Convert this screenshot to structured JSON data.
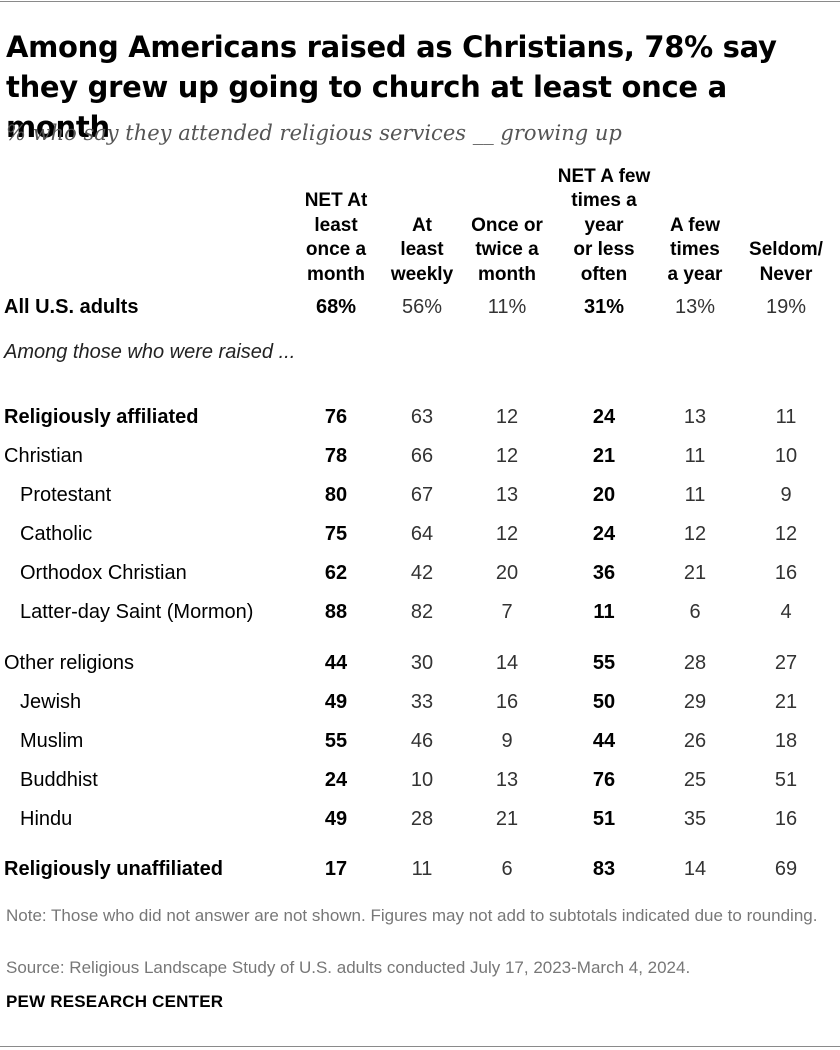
{
  "title": "Among Americans raised as Christians, 78% say they grew up going to church at least once a month",
  "subtitle": "% who say they attended religious services __ growing up",
  "section_note": "Among those who were raised ...",
  "note": "Note: Those who did not answer are not shown. Figures may not add to subtotals indicated due to rounding.",
  "source": "Source: Religious Landscape Study of U.S. adults conducted July 17, 2023-March 4, 2024.",
  "org": "PEW RESEARCH CENTER",
  "chart_data": {
    "type": "table",
    "title": "Among Americans raised as Christians, 78% say they grew up going to church at least once a month",
    "subtitle": "% who say they attended religious services __ growing up",
    "columns": [
      "NET At\nleast\nonce a\nmonth",
      "At\nleast\nweekly",
      "Once or\ntwice a\nmonth",
      "NET A few\ntimes a\nyear\nor less\noften",
      "A few\ntimes\na year",
      "Seldom/\nNever"
    ],
    "bold_columns": [
      0,
      3
    ],
    "rows": [
      {
        "label": "All U.S. adults",
        "bold": true,
        "indent": false,
        "values": [
          "68%",
          "56%",
          "11%",
          "31%",
          "13%",
          "19%"
        ]
      },
      {
        "label": "Religiously affiliated",
        "bold": true,
        "indent": false,
        "values": [
          "76",
          "63",
          "12",
          "24",
          "13",
          "11"
        ]
      },
      {
        "label": "Christian",
        "bold": false,
        "indent": false,
        "values": [
          "78",
          "66",
          "12",
          "21",
          "11",
          "10"
        ]
      },
      {
        "label": "Protestant",
        "bold": false,
        "indent": true,
        "values": [
          "80",
          "67",
          "13",
          "20",
          "11",
          "9"
        ]
      },
      {
        "label": "Catholic",
        "bold": false,
        "indent": true,
        "values": [
          "75",
          "64",
          "12",
          "24",
          "12",
          "12"
        ]
      },
      {
        "label": "Orthodox Christian",
        "bold": false,
        "indent": true,
        "values": [
          "62",
          "42",
          "20",
          "36",
          "21",
          "16"
        ]
      },
      {
        "label": "Latter-day Saint (Mormon)",
        "bold": false,
        "indent": true,
        "values": [
          "88",
          "82",
          "7",
          "11",
          "6",
          "4"
        ]
      },
      {
        "label": "Other religions",
        "bold": false,
        "indent": false,
        "values": [
          "44",
          "30",
          "14",
          "55",
          "28",
          "27"
        ]
      },
      {
        "label": "Jewish",
        "bold": false,
        "indent": true,
        "values": [
          "49",
          "33",
          "16",
          "50",
          "29",
          "21"
        ]
      },
      {
        "label": "Muslim",
        "bold": false,
        "indent": true,
        "values": [
          "55",
          "46",
          "9",
          "44",
          "26",
          "18"
        ]
      },
      {
        "label": "Buddhist",
        "bold": false,
        "indent": true,
        "values": [
          "24",
          "10",
          "13",
          "76",
          "25",
          "51"
        ]
      },
      {
        "label": "Hindu",
        "bold": false,
        "indent": true,
        "values": [
          "49",
          "28",
          "21",
          "51",
          "35",
          "16"
        ]
      },
      {
        "label": "Religiously unaffiliated",
        "bold": true,
        "indent": false,
        "values": [
          "17",
          "11",
          "6",
          "83",
          "14",
          "69"
        ]
      }
    ]
  }
}
